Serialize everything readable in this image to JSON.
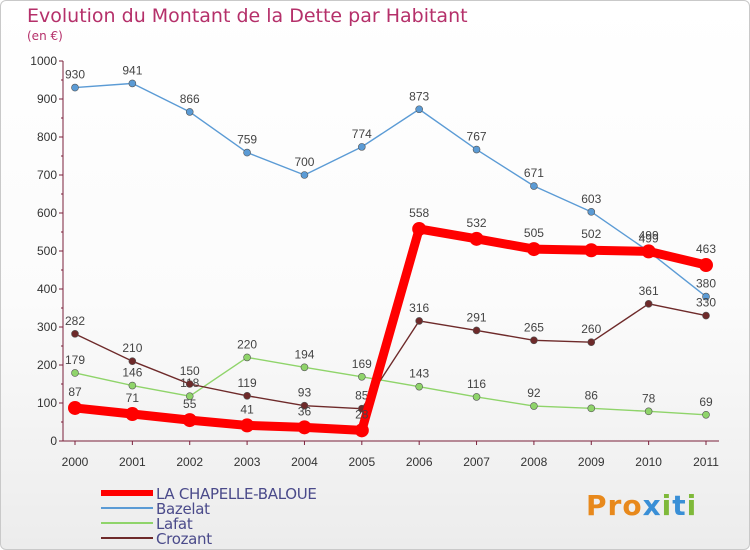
{
  "chart_data": {
    "type": "line",
    "title": "Evolution du Montant de la Dette par Habitant",
    "subtitle": "(en €)",
    "xlabel": "",
    "ylabel": "",
    "categories": [
      "2000",
      "2001",
      "2002",
      "2003",
      "2004",
      "2005",
      "2006",
      "2007",
      "2008",
      "2009",
      "2010",
      "2011"
    ],
    "ylim": [
      0,
      1000
    ],
    "yticks": [
      "0",
      "100",
      "200",
      "300",
      "400",
      "500",
      "600",
      "700",
      "800",
      "900",
      "1000"
    ],
    "grid": false,
    "legend_position": "bottom-left",
    "series": [
      {
        "name": "Bazelat",
        "color": "#5b9bd5",
        "values": [
          930,
          941,
          866,
          759,
          700,
          774,
          873,
          767,
          671,
          603,
          499,
          380
        ]
      },
      {
        "name": "Lafat",
        "color": "#8fd46a",
        "values": [
          179,
          146,
          118,
          220,
          194,
          169,
          143,
          116,
          92,
          86,
          78,
          69
        ]
      },
      {
        "name": "Crozant",
        "color": "#6e2a2a",
        "values": [
          282,
          210,
          150,
          119,
          93,
          85,
          316,
          291,
          265,
          260,
          361,
          330
        ]
      },
      {
        "name": "LA CHAPELLE-BALOUE",
        "color": "#ff0000",
        "values": [
          87,
          71,
          55,
          41,
          36,
          28,
          558,
          532,
          505,
          502,
          499,
          463
        ]
      }
    ]
  },
  "legend": {
    "items": [
      {
        "label": "LA CHAPELLE-BALOUE",
        "color": "#ff0000"
      },
      {
        "label": "Bazelat",
        "color": "#5b9bd5"
      },
      {
        "label": "Lafat",
        "color": "#8fd46a"
      },
      {
        "label": "Crozant",
        "color": "#6e2a2a"
      }
    ]
  },
  "brand": {
    "name": "Proxiti",
    "letters": [
      {
        "ch": "P",
        "color": "#e8891c"
      },
      {
        "ch": "r",
        "color": "#e8891c"
      },
      {
        "ch": "o",
        "color": "#e8891c"
      },
      {
        "ch": "x",
        "color": "#3a8fd6"
      },
      {
        "ch": "i",
        "color": "#7fb93a"
      },
      {
        "ch": "t",
        "color": "#3a8fd6"
      },
      {
        "ch": "i",
        "color": "#7fb93a"
      }
    ]
  }
}
